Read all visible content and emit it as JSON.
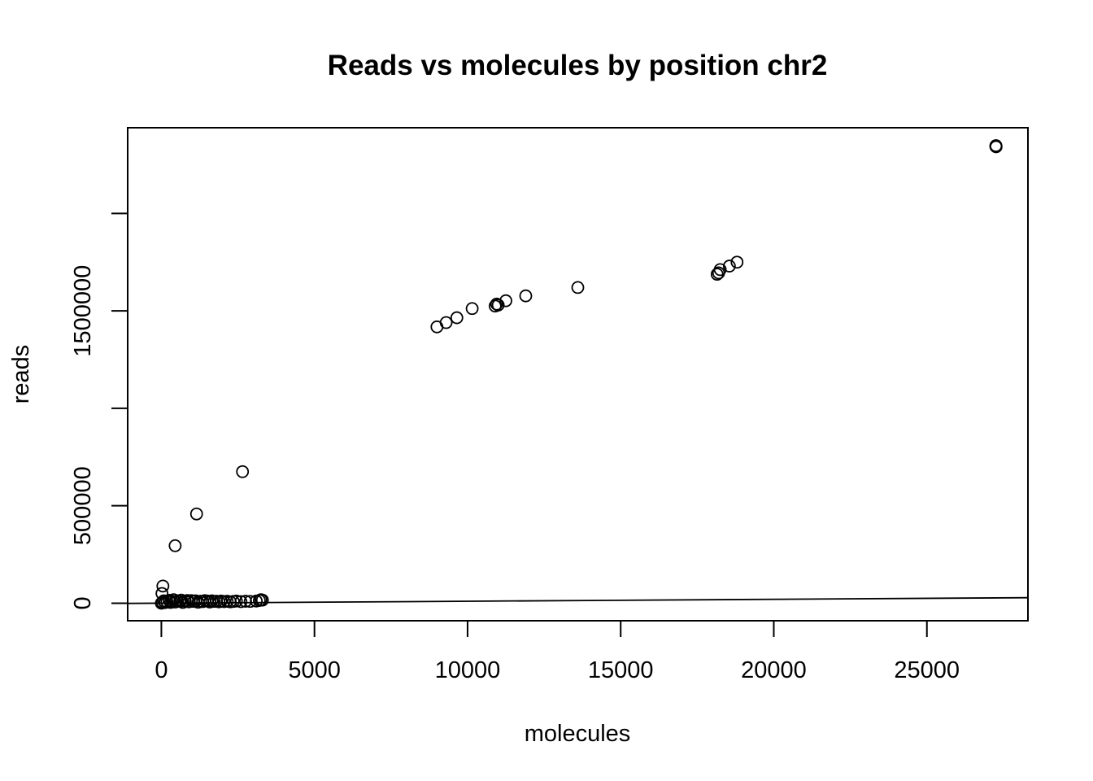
{
  "chart_data": {
    "type": "scatter",
    "title": "Reads vs molecules by position chr2",
    "xlabel": "molecules",
    "ylabel": "reads",
    "xlim": [
      -1100,
      28300
    ],
    "ylim": [
      -90000,
      2440000
    ],
    "x_ticks": [
      0,
      5000,
      10000,
      15000,
      20000,
      25000
    ],
    "x_tick_labels": [
      "0",
      "5000",
      "10000",
      "15000",
      "20000",
      "25000"
    ],
    "y_ticks": [
      0,
      500000,
      1000000,
      1500000,
      2000000
    ],
    "y_tick_labels": [
      "0",
      "500000",
      "",
      "1500000",
      ""
    ],
    "grid": false,
    "legend": "none",
    "fit_line": {
      "intercept": 0,
      "slope": 1
    },
    "points": [
      {
        "x": 27250,
        "y": 2345000
      },
      {
        "x": 27260,
        "y": 2342000
      },
      {
        "x": 27255,
        "y": 2348000
      },
      {
        "x": 18800,
        "y": 1750000
      },
      {
        "x": 18550,
        "y": 1730000
      },
      {
        "x": 18250,
        "y": 1712000
      },
      {
        "x": 18150,
        "y": 1688000
      },
      {
        "x": 18200,
        "y": 1695000
      },
      {
        "x": 13600,
        "y": 1620000
      },
      {
        "x": 11900,
        "y": 1577000
      },
      {
        "x": 11250,
        "y": 1552000
      },
      {
        "x": 10950,
        "y": 1535000
      },
      {
        "x": 10900,
        "y": 1525000
      },
      {
        "x": 11000,
        "y": 1530000
      },
      {
        "x": 10150,
        "y": 1512000
      },
      {
        "x": 9650,
        "y": 1465000
      },
      {
        "x": 9300,
        "y": 1440000
      },
      {
        "x": 9000,
        "y": 1418000
      },
      {
        "x": 2650,
        "y": 675000
      },
      {
        "x": 1150,
        "y": 458000
      },
      {
        "x": 450,
        "y": 295000
      },
      {
        "x": 50,
        "y": 88000
      },
      {
        "x": 20,
        "y": 50000
      },
      {
        "x": 0,
        "y": 0
      },
      {
        "x": 30,
        "y": 5000
      },
      {
        "x": 80,
        "y": 12000
      },
      {
        "x": 120,
        "y": 3000
      },
      {
        "x": 180,
        "y": 8000
      },
      {
        "x": 250,
        "y": 15000
      },
      {
        "x": 300,
        "y": 4000
      },
      {
        "x": 350,
        "y": 10000
      },
      {
        "x": 400,
        "y": 18000
      },
      {
        "x": 450,
        "y": 6000
      },
      {
        "x": 520,
        "y": 12000
      },
      {
        "x": 600,
        "y": 9000
      },
      {
        "x": 650,
        "y": 16000
      },
      {
        "x": 700,
        "y": 4000
      },
      {
        "x": 780,
        "y": 11000
      },
      {
        "x": 850,
        "y": 14000
      },
      {
        "x": 900,
        "y": 7000
      },
      {
        "x": 980,
        "y": 13000
      },
      {
        "x": 1050,
        "y": 9000
      },
      {
        "x": 1120,
        "y": 12000
      },
      {
        "x": 1200,
        "y": 5000
      },
      {
        "x": 1280,
        "y": 10000
      },
      {
        "x": 1350,
        "y": 8000
      },
      {
        "x": 1420,
        "y": 13000
      },
      {
        "x": 1500,
        "y": 11000
      },
      {
        "x": 1580,
        "y": 6000
      },
      {
        "x": 1650,
        "y": 12000
      },
      {
        "x": 1720,
        "y": 9000
      },
      {
        "x": 1800,
        "y": 10000
      },
      {
        "x": 1880,
        "y": 7000
      },
      {
        "x": 1950,
        "y": 11000
      },
      {
        "x": 2050,
        "y": 8000
      },
      {
        "x": 2150,
        "y": 10000
      },
      {
        "x": 2250,
        "y": 7000
      },
      {
        "x": 2350,
        "y": 9000
      },
      {
        "x": 2450,
        "y": 11000
      },
      {
        "x": 2600,
        "y": 8000
      },
      {
        "x": 2750,
        "y": 10000
      },
      {
        "x": 2900,
        "y": 9000
      },
      {
        "x": 3100,
        "y": 11000
      },
      {
        "x": 3200,
        "y": 14000
      },
      {
        "x": 3250,
        "y": 18000
      },
      {
        "x": 3300,
        "y": 16000
      }
    ]
  }
}
